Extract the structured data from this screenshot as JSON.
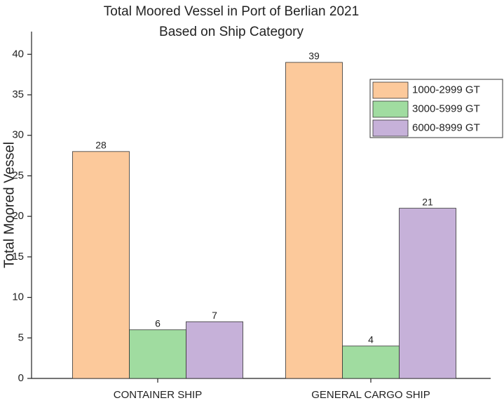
{
  "chart_data": {
    "type": "bar",
    "title": "Total Moored Vessel in Port of Berlian 2021",
    "subtitle": "Based on Ship Category",
    "y_label": "Total Moored Vessel",
    "categories": [
      "CONTAINER SHIP",
      "GENERAL CARGO SHIP"
    ],
    "series": [
      {
        "name": "1000-2999 GT",
        "color": "#fcc99b",
        "values": [
          28,
          39
        ]
      },
      {
        "name": "3000-5999 GT",
        "color": "#a0dca0",
        "values": [
          6,
          4
        ]
      },
      {
        "name": "6000-8999 GT",
        "color": "#c6b1d9",
        "values": [
          7,
          21
        ]
      }
    ],
    "ylim": [
      0,
      42.8
    ],
    "yticks": [
      0,
      5,
      10,
      15,
      20,
      25,
      30,
      35,
      40
    ],
    "legend": "upper right",
    "grid": false
  }
}
